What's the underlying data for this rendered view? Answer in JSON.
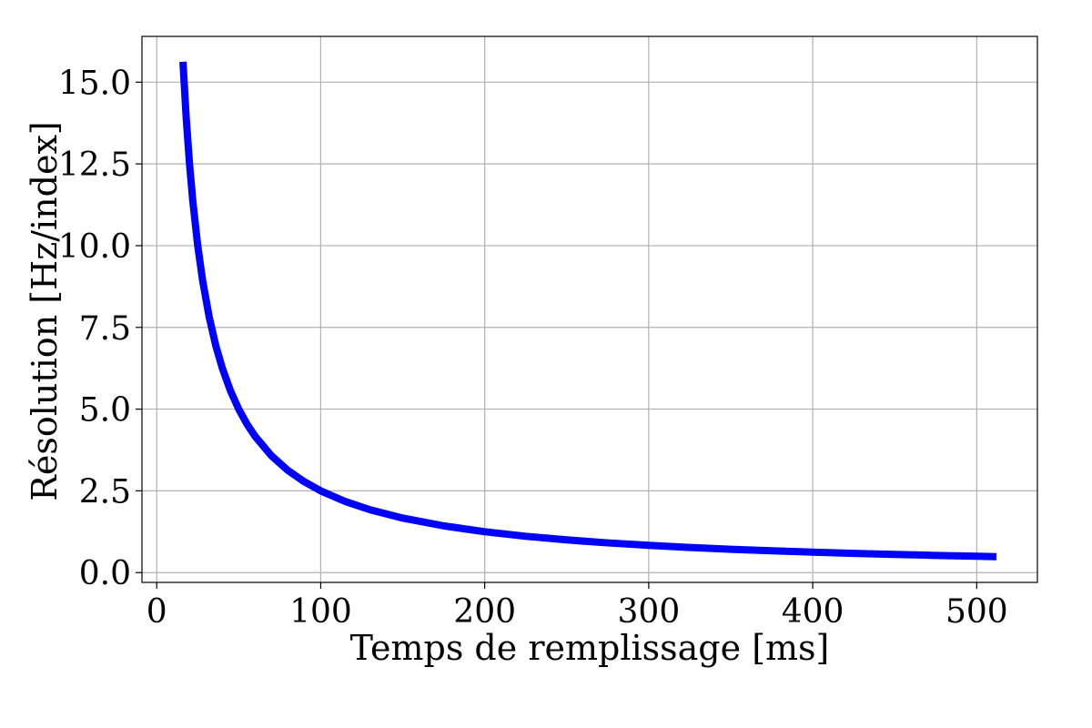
{
  "chart_data": {
    "type": "line",
    "title": "",
    "xlabel": "Temps de remplissage [ms]",
    "ylabel": "Résolution [Hz/index]",
    "xlim": [
      -9,
      537
    ],
    "ylim": [
      -0.3,
      16.4
    ],
    "xticks": [
      0,
      100,
      200,
      300,
      400,
      500
    ],
    "xtick_labels": [
      "0",
      "100",
      "200",
      "300",
      "400",
      "500"
    ],
    "yticks": [
      0.0,
      2.5,
      5.0,
      7.5,
      10.0,
      12.5,
      15.0
    ],
    "ytick_labels": [
      "0.0",
      "2.5",
      "5.0",
      "7.5",
      "10.0",
      "12.5",
      "15.0"
    ],
    "grid": true,
    "legend": false,
    "series": [
      {
        "color": "#0000ff",
        "x": [
          16,
          18,
          20,
          22,
          25,
          28,
          32,
          36,
          40,
          45,
          50,
          55,
          60,
          70,
          80,
          90,
          100,
          115,
          130,
          150,
          175,
          200,
          225,
          250,
          275,
          300,
          325,
          350,
          375,
          400,
          425,
          450,
          475,
          500,
          512
        ],
        "y": [
          15.625,
          13.889,
          12.5,
          11.364,
          10.0,
          8.929,
          7.813,
          6.944,
          6.25,
          5.556,
          5.0,
          4.545,
          4.167,
          3.571,
          3.125,
          2.778,
          2.5,
          2.174,
          1.923,
          1.667,
          1.429,
          1.25,
          1.111,
          1.0,
          0.909,
          0.833,
          0.769,
          0.714,
          0.667,
          0.625,
          0.588,
          0.556,
          0.526,
          0.5,
          0.488
        ]
      }
    ]
  }
}
